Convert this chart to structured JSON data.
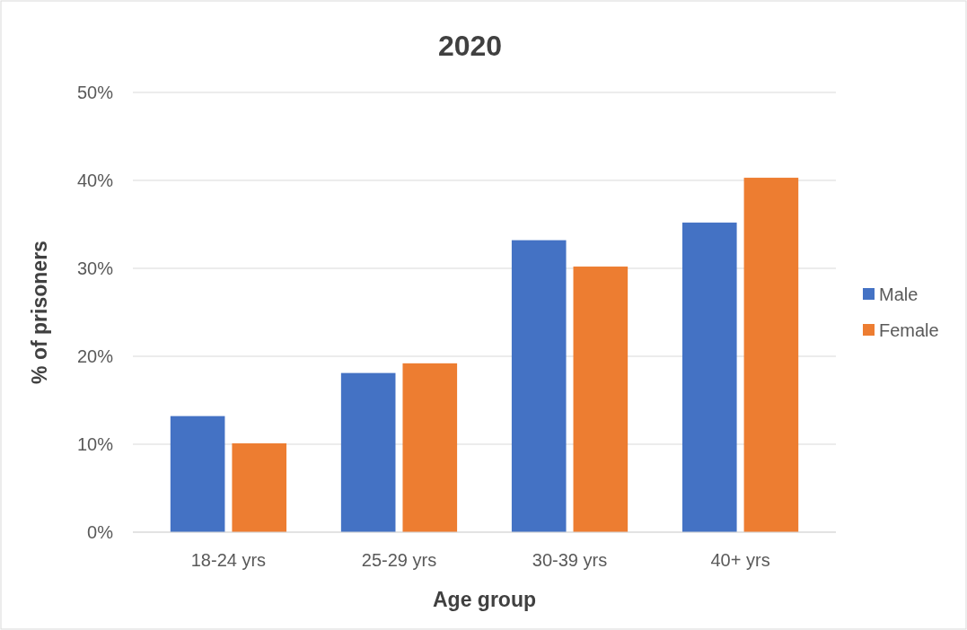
{
  "chart_data": {
    "type": "bar",
    "title": "2020",
    "xlabel": "Age group",
    "ylabel": "% of prisoners",
    "categories": [
      "18-24 yrs",
      "25-29 yrs",
      "30-39 yrs",
      "40+ yrs"
    ],
    "series": [
      {
        "name": "Male",
        "color": "#4472c4",
        "values": [
          13.2,
          18.1,
          33.2,
          35.2
        ]
      },
      {
        "name": "Female",
        "color": "#ed7d31",
        "values": [
          10.1,
          19.2,
          30.2,
          40.3
        ]
      }
    ],
    "ylim": [
      0,
      50
    ],
    "yticks": [
      {
        "value": 0,
        "label": "0%"
      },
      {
        "value": 10,
        "label": "10%"
      },
      {
        "value": 20,
        "label": "20%"
      },
      {
        "value": 30,
        "label": "30%"
      },
      {
        "value": 40,
        "label": "40%"
      },
      {
        "value": 50,
        "label": "50%"
      }
    ],
    "grid": "y",
    "legend": "right"
  }
}
